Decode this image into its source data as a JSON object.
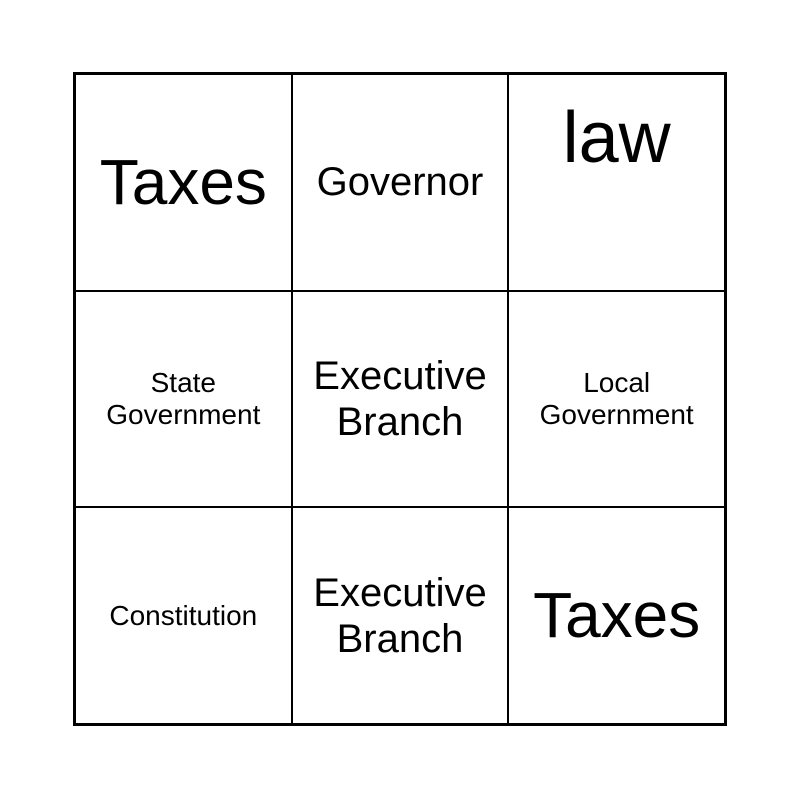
{
  "cells": [
    "Taxes",
    "Governor",
    "law",
    "State Government",
    "Executive Branch",
    "Local Government",
    "Constitution",
    "Executive Branch",
    "Taxes"
  ]
}
